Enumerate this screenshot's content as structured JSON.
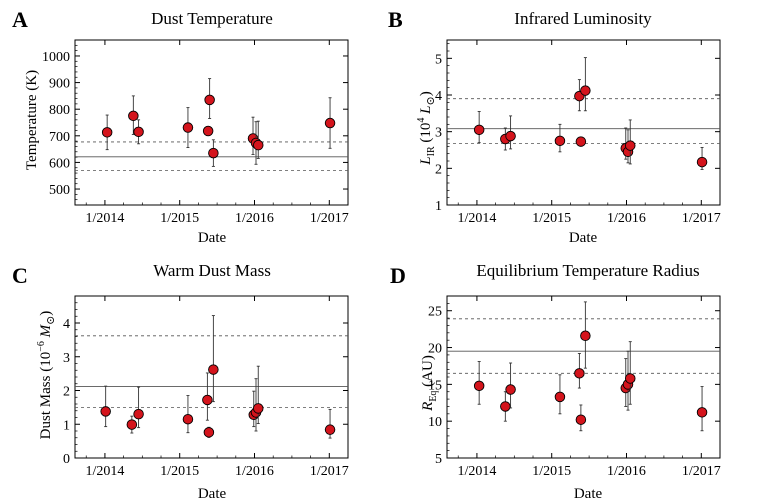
{
  "chart_data": [
    {
      "type": "scatter",
      "letter": "A",
      "title": "Dust Temperature",
      "xlabel": "Date",
      "ylabel": "Temperature (K)",
      "ylim": [
        440,
        1060
      ],
      "yticks": [
        500,
        600,
        700,
        800,
        900,
        1000
      ],
      "yticklabels": [
        "500",
        "600",
        "700",
        "800",
        "900",
        "1000"
      ],
      "xlim": [
        2013.6,
        2017.25
      ],
      "xticks": [
        2014,
        2015,
        2016,
        2017
      ],
      "xticklabels": [
        "1/2014",
        "1/2015",
        "1/2016",
        "1/2017"
      ],
      "hlines": {
        "mean": 621,
        "lower": 570,
        "upper": 677
      },
      "points": [
        {
          "x": 2014.03,
          "y": 713,
          "err_low": 65,
          "err_high": 65
        },
        {
          "x": 2014.38,
          "y": 775,
          "err_low": 70,
          "err_high": 75
        },
        {
          "x": 2014.45,
          "y": 715,
          "err_low": 45,
          "err_high": 45
        },
        {
          "x": 2015.11,
          "y": 731,
          "err_low": 75,
          "err_high": 75
        },
        {
          "x": 2015.38,
          "y": 718,
          "err_low": 10,
          "err_high": 10
        },
        {
          "x": 2015.4,
          "y": 835,
          "err_low": 70,
          "err_high": 80
        },
        {
          "x": 2015.45,
          "y": 635,
          "err_low": 50,
          "err_high": 50
        },
        {
          "x": 2015.98,
          "y": 690,
          "err_low": 60,
          "err_high": 80
        },
        {
          "x": 2016.02,
          "y": 673,
          "err_low": 80,
          "err_high": 80
        },
        {
          "x": 2016.05,
          "y": 665,
          "err_low": 50,
          "err_high": 90
        },
        {
          "x": 2017.01,
          "y": 748,
          "err_low": 95,
          "err_high": 95
        }
      ]
    },
    {
      "type": "scatter",
      "letter": "B",
      "title": "Infrared Luminosity",
      "xlabel": "Date",
      "ylabel": "L_IR (10^4 L_sun)",
      "ylim": [
        1,
        5.5
      ],
      "yticks": [
        1,
        2,
        3,
        4,
        5
      ],
      "yticklabels": [
        "1",
        "2",
        "3",
        "4",
        "5"
      ],
      "xlim": [
        2013.6,
        2017.25
      ],
      "xticks": [
        2014,
        2015,
        2016,
        2017
      ],
      "xticklabels": [
        "1/2014",
        "1/2015",
        "1/2016",
        "1/2017"
      ],
      "hlines": {
        "mean": 3.08,
        "lower": 2.68,
        "upper": 3.9
      },
      "points": [
        {
          "x": 2014.03,
          "y": 3.05,
          "err_low": 0.35,
          "err_high": 0.5
        },
        {
          "x": 2014.38,
          "y": 2.8,
          "err_low": 0.3,
          "err_high": 0.3
        },
        {
          "x": 2014.45,
          "y": 2.88,
          "err_low": 0.35,
          "err_high": 0.55
        },
        {
          "x": 2015.11,
          "y": 2.75,
          "err_low": 0.3,
          "err_high": 0.45
        },
        {
          "x": 2015.37,
          "y": 3.97,
          "err_low": 0.4,
          "err_high": 0.45
        },
        {
          "x": 2015.39,
          "y": 2.73,
          "err_low": 0.1,
          "err_high": 0.1
        },
        {
          "x": 2015.45,
          "y": 4.12,
          "err_low": 0.55,
          "err_high": 0.9
        },
        {
          "x": 2015.99,
          "y": 2.55,
          "err_low": 0.3,
          "err_high": 0.55
        },
        {
          "x": 2016.02,
          "y": 2.45,
          "err_low": 0.3,
          "err_high": 0.6
        },
        {
          "x": 2016.05,
          "y": 2.62,
          "err_low": 0.5,
          "err_high": 0.7
        },
        {
          "x": 2017.01,
          "y": 2.17,
          "err_low": 0.2,
          "err_high": 0.4
        }
      ]
    },
    {
      "type": "scatter",
      "letter": "C",
      "title": "Warm Dust Mass",
      "xlabel": "Date",
      "ylabel": "Dust Mass (10^-6 M_sun)",
      "ylim": [
        0,
        4.8
      ],
      "yticks": [
        0,
        1,
        2,
        3,
        4
      ],
      "yticklabels": [
        "0",
        "1",
        "2",
        "3",
        "4"
      ],
      "xlim": [
        2013.6,
        2017.25
      ],
      "xticks": [
        2014,
        2015,
        2016,
        2017
      ],
      "xticklabels": [
        "1/2014",
        "1/2015",
        "1/2016",
        "1/2017"
      ],
      "hlines": {
        "mean": 2.12,
        "lower": 1.5,
        "upper": 3.62
      },
      "points": [
        {
          "x": 2014.01,
          "y": 1.38,
          "err_low": 0.45,
          "err_high": 0.75
        },
        {
          "x": 2014.36,
          "y": 0.99,
          "err_low": 0.25,
          "err_high": 0.25
        },
        {
          "x": 2014.45,
          "y": 1.3,
          "err_low": 0.4,
          "err_high": 0.8
        },
        {
          "x": 2015.11,
          "y": 1.15,
          "err_low": 0.4,
          "err_high": 0.7
        },
        {
          "x": 2015.37,
          "y": 1.72,
          "err_low": 0.6,
          "err_high": 0.8
        },
        {
          "x": 2015.39,
          "y": 0.76,
          "err_low": 0.15,
          "err_high": 0.15
        },
        {
          "x": 2015.45,
          "y": 2.62,
          "err_low": 0.95,
          "err_high": 1.6
        },
        {
          "x": 2015.99,
          "y": 1.28,
          "err_low": 0.35,
          "err_high": 0.7
        },
        {
          "x": 2016.02,
          "y": 1.35,
          "err_low": 0.55,
          "err_high": 1.0
        },
        {
          "x": 2016.05,
          "y": 1.47,
          "err_low": 0.45,
          "err_high": 1.25
        },
        {
          "x": 2017.01,
          "y": 0.84,
          "err_low": 0.25,
          "err_high": 0.6
        }
      ]
    },
    {
      "type": "scatter",
      "letter": "D",
      "title": "Equilibrium Temperature Radius",
      "xlabel": "Date",
      "ylabel": "R_Eq (AU)",
      "ylim": [
        5,
        27
      ],
      "yticks": [
        5,
        10,
        15,
        20,
        25
      ],
      "yticklabels": [
        "5",
        "10",
        "15",
        "20",
        "25"
      ],
      "xlim": [
        2013.6,
        2017.25
      ],
      "xticks": [
        2014,
        2015,
        2016,
        2017
      ],
      "xticklabels": [
        "1/2014",
        "1/2015",
        "1/2016",
        "1/2017"
      ],
      "hlines": {
        "mean": 19.5,
        "lower": 16.5,
        "upper": 23.9
      },
      "points": [
        {
          "x": 2014.03,
          "y": 14.8,
          "err_low": 2.5,
          "err_high": 3.3
        },
        {
          "x": 2014.38,
          "y": 12.0,
          "err_low": 2.0,
          "err_high": 2.0
        },
        {
          "x": 2014.45,
          "y": 14.3,
          "err_low": 2.5,
          "err_high": 3.6
        },
        {
          "x": 2015.11,
          "y": 13.3,
          "err_low": 2.3,
          "err_high": 3.0
        },
        {
          "x": 2015.37,
          "y": 16.5,
          "err_low": 2.0,
          "err_high": 2.7
        },
        {
          "x": 2015.39,
          "y": 10.2,
          "err_low": 1.5,
          "err_high": 2.0
        },
        {
          "x": 2015.45,
          "y": 21.6,
          "err_low": 4.4,
          "err_high": 4.6
        },
        {
          "x": 2015.99,
          "y": 14.5,
          "err_low": 2.5,
          "err_high": 4.0
        },
        {
          "x": 2016.02,
          "y": 15.0,
          "err_low": 3.5,
          "err_high": 4.5
        },
        {
          "x": 2016.05,
          "y": 15.8,
          "err_low": 3.5,
          "err_high": 5.0
        },
        {
          "x": 2017.01,
          "y": 11.2,
          "err_low": 2.5,
          "err_high": 3.5
        }
      ]
    }
  ]
}
